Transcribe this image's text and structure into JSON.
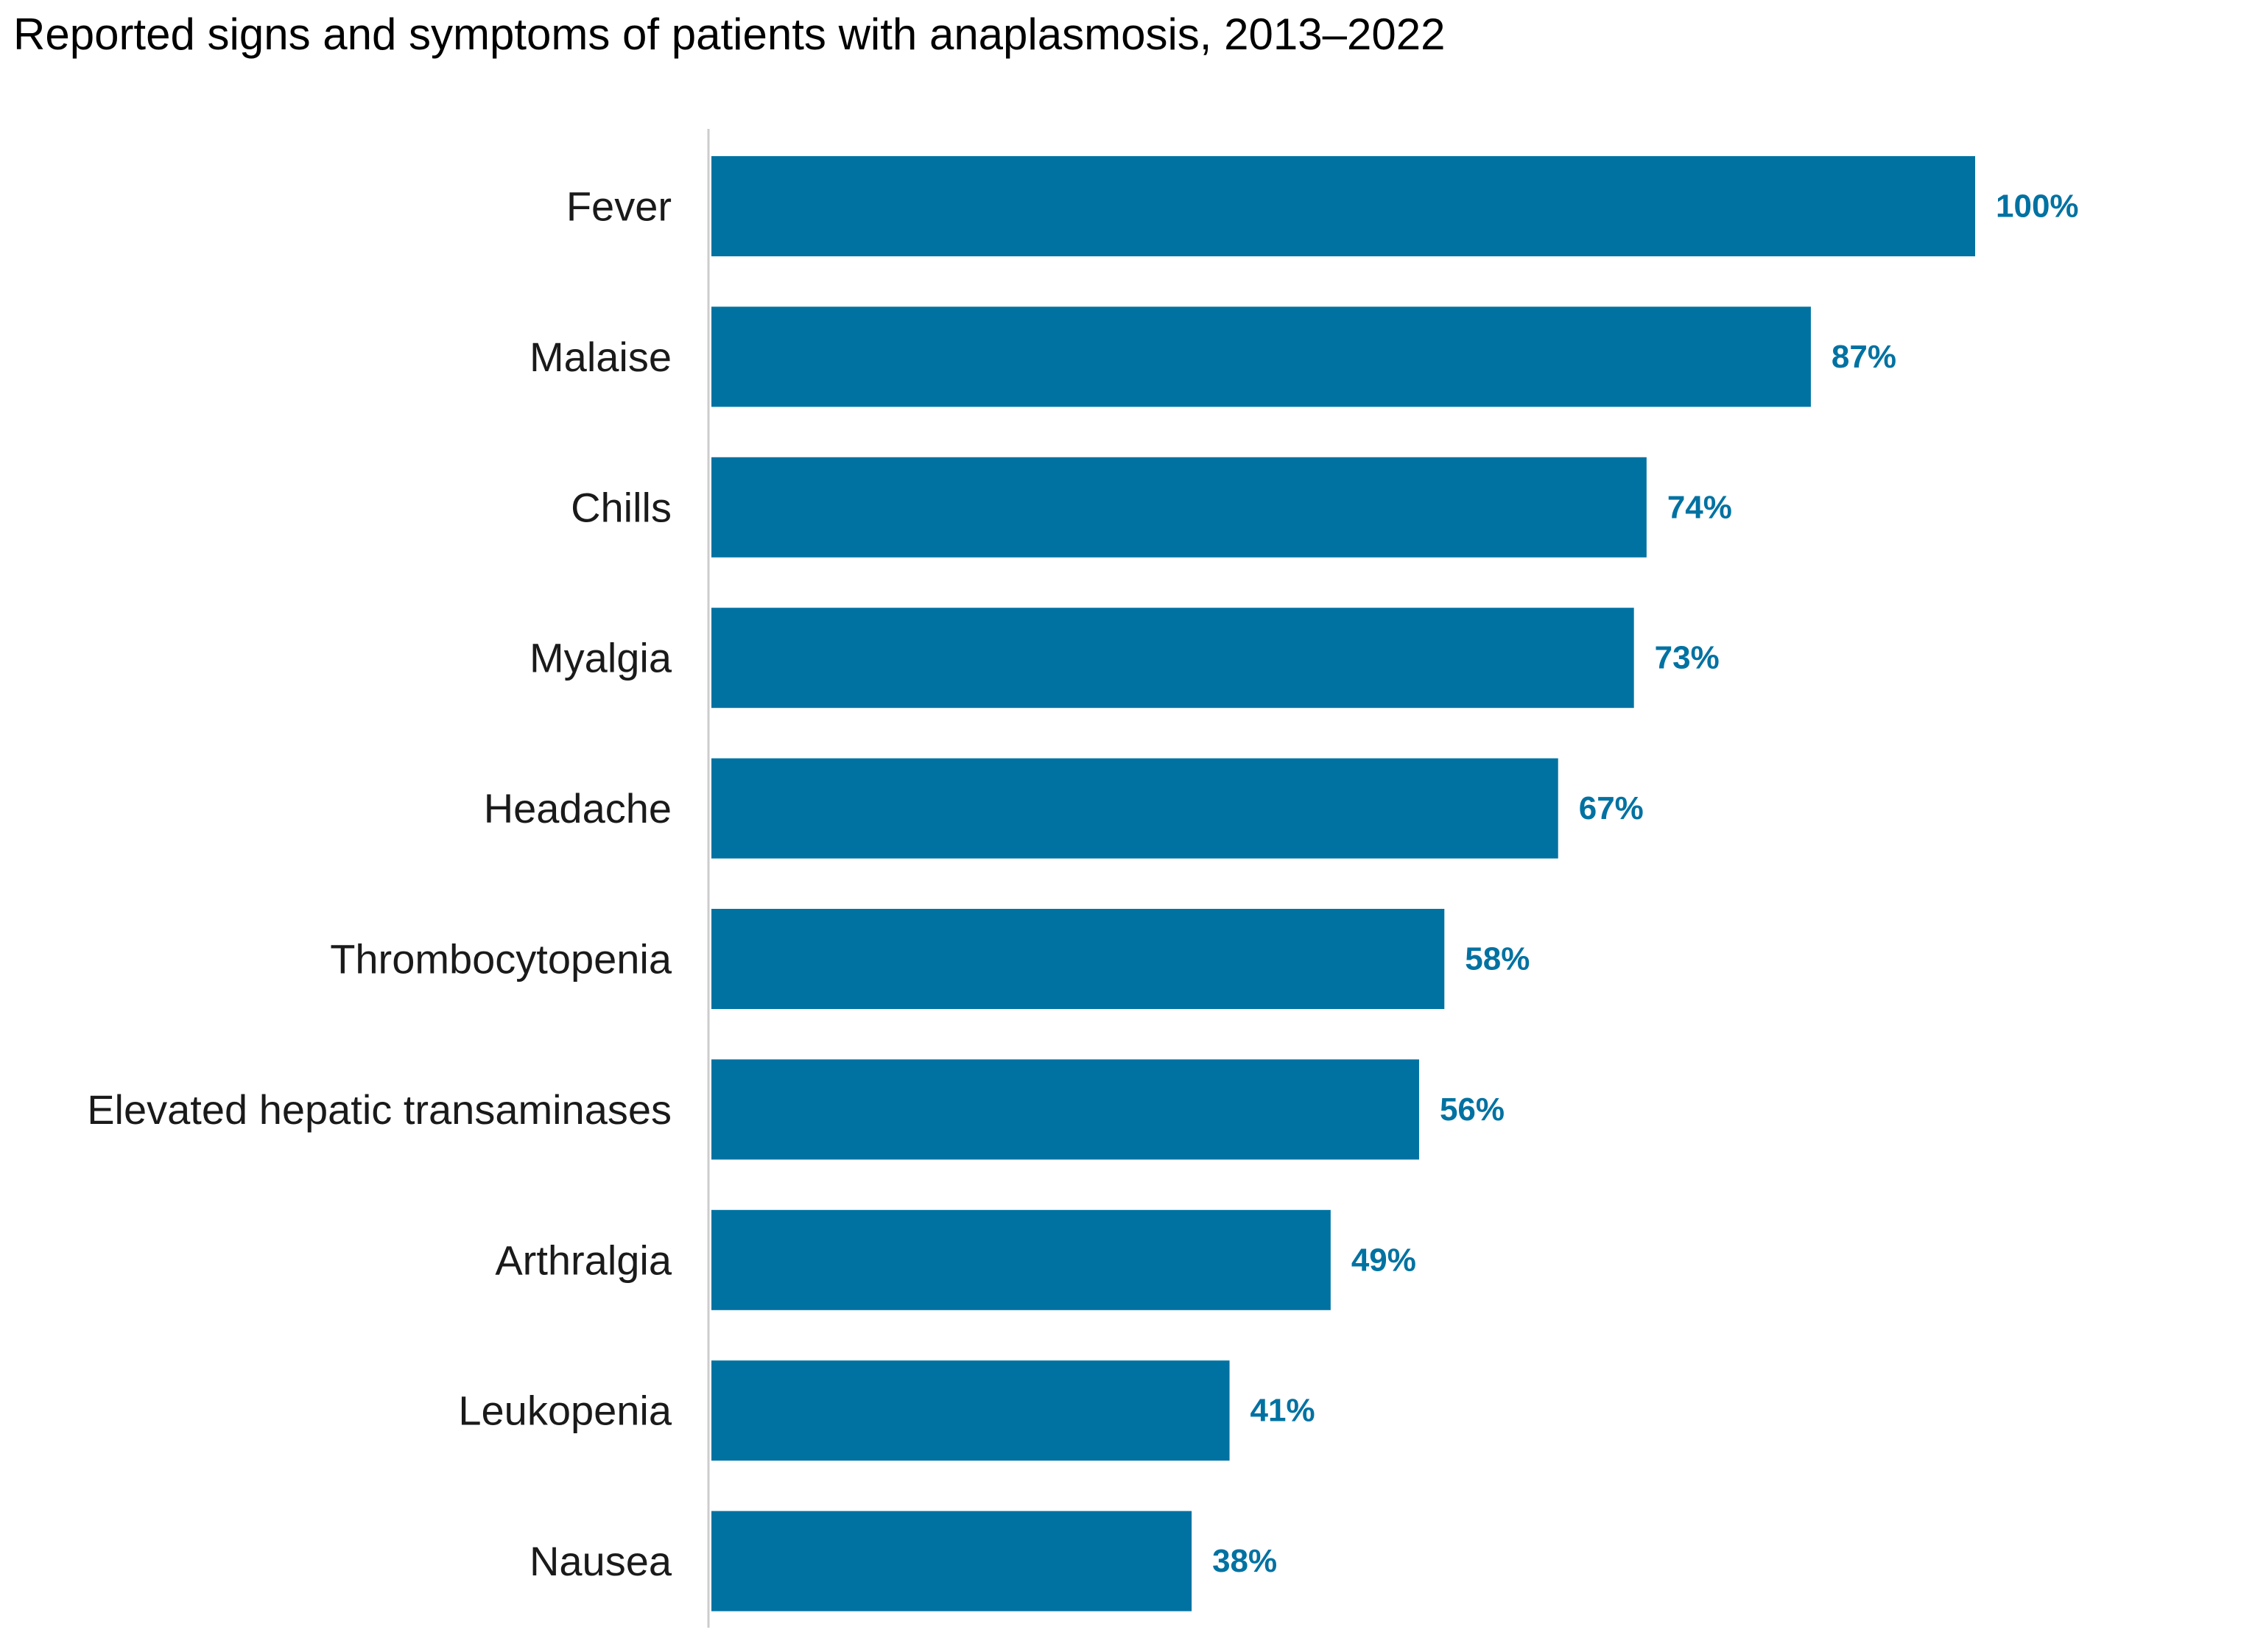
{
  "chart_data": {
    "type": "bar",
    "orientation": "horizontal",
    "title": "Reported signs and symptoms of patients with anaplasmosis, 2013–2022",
    "categories": [
      "Fever",
      "Malaise",
      "Chills",
      "Myalgia",
      "Headache",
      "Thrombocytopenia",
      "Elevated hepatic transaminases",
      "Arthralgia",
      "Leukopenia",
      "Nausea"
    ],
    "values": [
      100,
      87,
      74,
      73,
      67,
      58,
      56,
      49,
      41,
      38
    ],
    "value_labels": [
      "100%",
      "87%",
      "74%",
      "73%",
      "67%",
      "58%",
      "56%",
      "49%",
      "41%",
      "38%"
    ],
    "xlim": [
      0,
      100
    ],
    "xlabel": "",
    "ylabel": "",
    "grid": false,
    "legend": "none"
  },
  "colors": {
    "bar": "#0072A2",
    "value_label": "#0072A2",
    "axis_line": "#cccccc"
  }
}
